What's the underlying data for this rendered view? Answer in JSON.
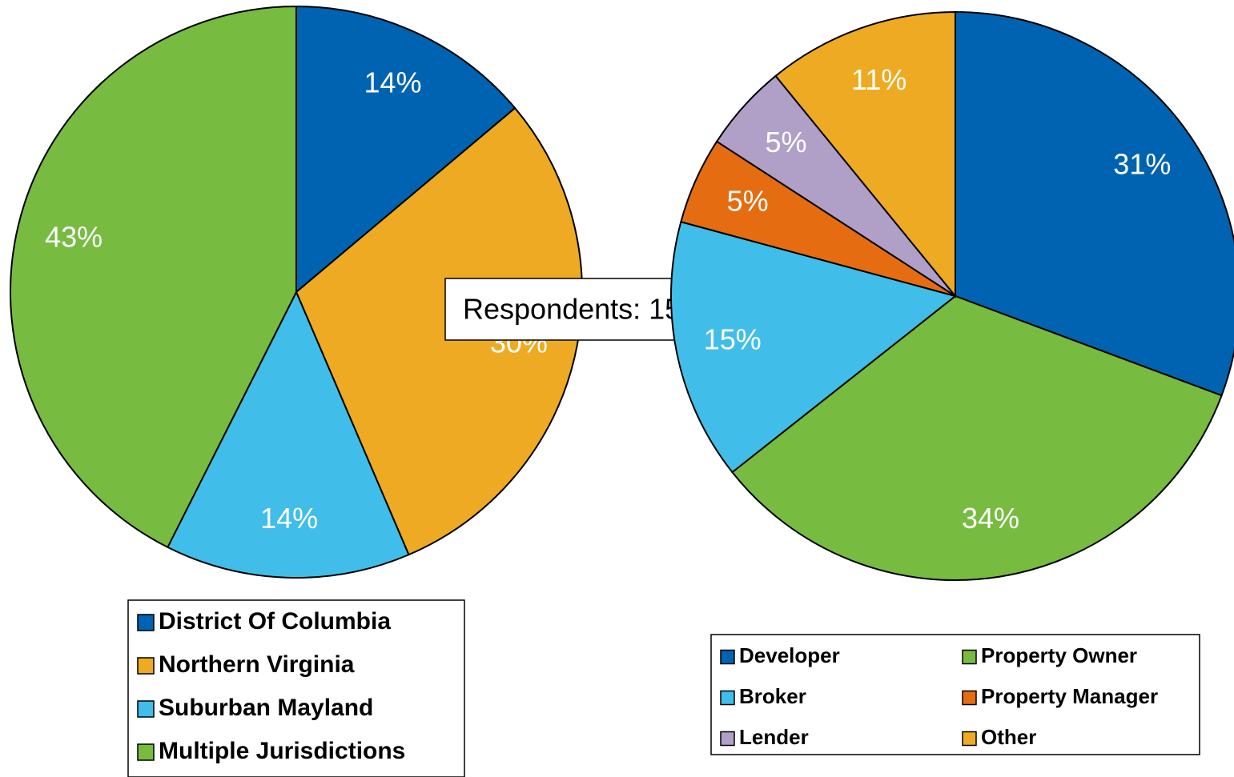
{
  "chart_data": [
    {
      "type": "pie",
      "categories": [
        "District Of Columbia",
        "Northern Virginia",
        "Suburban Mayland",
        "Multiple Jurisdictions"
      ],
      "values": [
        14,
        30,
        14,
        43
      ],
      "value_labels": [
        "14%",
        "30%",
        "14%",
        "43%"
      ],
      "colors": [
        "#0063b1",
        "#eeaa22",
        "#41bde9",
        "#77bb41"
      ],
      "legend": "bottom",
      "annotation": "Respondents: 153"
    },
    {
      "type": "pie",
      "categories": [
        "Developer",
        "Property Owner",
        "Broker",
        "Property Manager",
        "Lender",
        "Other"
      ],
      "values": [
        31,
        34,
        15,
        5,
        5,
        11
      ],
      "value_labels": [
        "31%",
        "34%",
        "15%",
        "5%",
        "5%",
        "11%"
      ],
      "colors": [
        "#0063b1",
        "#77bb41",
        "#41bde9",
        "#e66c12",
        "#b0a0c8",
        "#eeaa22"
      ],
      "legend": "bottom"
    }
  ]
}
